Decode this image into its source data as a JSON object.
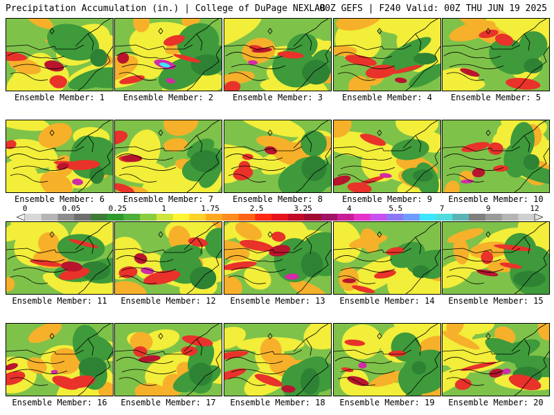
{
  "header": {
    "left": "Precipitation Accumulation (in.) | College of DuPage NEXLAB",
    "right": "00Z GEFS | F240 Valid: 00Z THU JUN 19 2025"
  },
  "colorbar": {
    "labels": [
      "0",
      "0.05",
      "0.25",
      "1",
      "1.75",
      "2.5",
      "3.25",
      "4",
      "5.5",
      "7",
      "9",
      "12"
    ],
    "colors": [
      "#d8d8d8",
      "#b4b4b4",
      "#8c8c8c",
      "#6e6e6e",
      "#3d7d36",
      "#2e9a2e",
      "#4caf3c",
      "#8acd3e",
      "#cde53c",
      "#fff532",
      "#ffd228",
      "#ffaa1e",
      "#ff8c1e",
      "#ff6414",
      "#ff2a14",
      "#e6141e",
      "#c00a28",
      "#a00a32",
      "#a01464",
      "#c81e96",
      "#e632c8",
      "#c850f0",
      "#8c78f5",
      "#6e9bff",
      "#3ce6ff",
      "#50dcdc",
      "#5ab4b4",
      "#7f7f7f",
      "#9a9a9a",
      "#b4b4b4",
      "#cfcfcf"
    ]
  },
  "map_colors": {
    "green": "#7fc24a",
    "dark_green": "#3e9a3a",
    "darker_green": "#2e8234",
    "yellow": "#f2ee3a",
    "orange": "#f7b02a",
    "red": "#e8322a",
    "dark_red": "#b8142e",
    "magenta": "#d22aa8",
    "cyan": "#3ce6ff"
  },
  "panels": [
    {
      "caption": "Ensemble Member: 1"
    },
    {
      "caption": "Ensemble Member: 2"
    },
    {
      "caption": "Ensemble Member: 3"
    },
    {
      "caption": "Ensemble Member: 4"
    },
    {
      "caption": "Ensemble Member: 5"
    },
    {
      "caption": "Ensemble Member: 6"
    },
    {
      "caption": "Ensemble Member: 7"
    },
    {
      "caption": "Ensemble Member: 8"
    },
    {
      "caption": "Ensemble Member: 9"
    },
    {
      "caption": "Ensemble Member: 10"
    },
    {
      "caption": "Ensemble Member: 11"
    },
    {
      "caption": "Ensemble Member: 12"
    },
    {
      "caption": "Ensemble Member: 13"
    },
    {
      "caption": "Ensemble Member: 14"
    },
    {
      "caption": "Ensemble Member: 15"
    },
    {
      "caption": "Ensemble Member: 16"
    },
    {
      "caption": "Ensemble Member: 17"
    },
    {
      "caption": "Ensemble Member: 18"
    },
    {
      "caption": "Ensemble Member: 19"
    },
    {
      "caption": "Ensemble Member: 20"
    }
  ]
}
